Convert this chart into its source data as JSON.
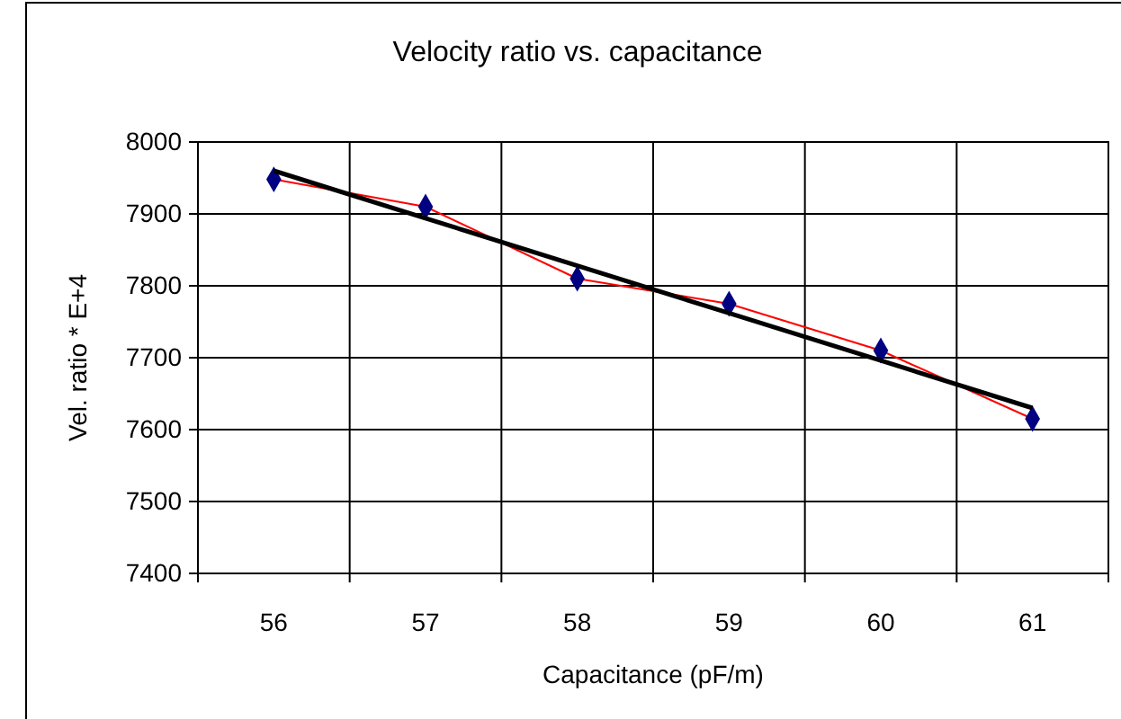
{
  "chart_data": {
    "type": "line",
    "title": "Velocity ratio vs. capacitance",
    "xlabel": "Capacitance (pF/m)",
    "ylabel": "Vel. ratio * E+4",
    "categories": [
      "56",
      "57",
      "58",
      "59",
      "60",
      "61"
    ],
    "series": [
      {
        "color": "#ff0000",
        "values": [
          7948,
          7910,
          7810,
          7775,
          7710,
          7615
        ],
        "marker": "diamond"
      },
      {
        "color": "#000000",
        "values": [
          7960,
          7894,
          7828,
          7762,
          7696,
          7630
        ],
        "marker": "none"
      }
    ],
    "ylim": [
      7400,
      8000
    ],
    "yticks": [
      7400,
      7500,
      7600,
      7700,
      7800,
      7900,
      8000
    ],
    "grid": true
  }
}
